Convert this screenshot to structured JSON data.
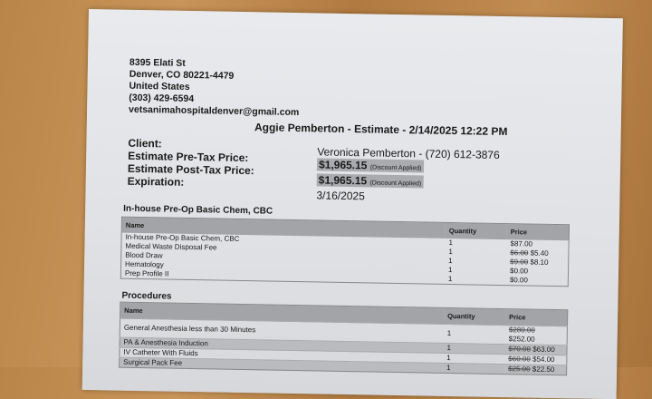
{
  "clinic": {
    "address1": "8395 Elati St",
    "address2": "Denver, CO 80221-4479",
    "country": "United States",
    "phone": "(303) 429-6594",
    "email": "vetsanimahospitaldenver@gmail.com"
  },
  "title": "Aggie Pemberton - Estimate - 2/14/2025 12:22 PM",
  "info": {
    "client_label": "Client:",
    "client_value": "Veronica Pemberton - (720) 612-3876",
    "pretax_label": "Estimate Pre-Tax Price:",
    "pretax_value": "$1,965.15",
    "pretax_note": "(Discount Applied)",
    "posttax_label": "Estimate Post-Tax Price:",
    "posttax_value": "$1,965.15",
    "posttax_note": "(Discount Applied)",
    "expiration_label": "Expiration:",
    "expiration_value": "3/16/2025"
  },
  "sections": [
    {
      "title": "In-house Pre-Op Basic Chem, CBC",
      "headers": [
        "Name",
        "Quantity",
        "Price"
      ],
      "rows": [
        {
          "name": "In-house Pre-Op Basic Chem, CBC",
          "qty": "1",
          "old": "",
          "price": "$87.00"
        },
        {
          "name": "Medical Waste Disposal Fee",
          "qty": "1",
          "old": "$6.00",
          "price": "$5.40"
        },
        {
          "name": "Blood Draw",
          "qty": "1",
          "old": "$9.00",
          "price": "$8.10"
        },
        {
          "name": "Hematology",
          "qty": "1",
          "old": "",
          "price": "$0.00"
        },
        {
          "name": "Prep Profile II",
          "qty": "1",
          "old": "",
          "price": "$0.00"
        }
      ]
    },
    {
      "title": "Procedures",
      "headers": [
        "Name",
        "Quantity",
        "Price"
      ],
      "rows": [
        {
          "name": "General Anesthesia less than 30 Minutes",
          "qty": "1",
          "old": "$280.00",
          "price": "$252.00"
        },
        {
          "name": "PA & Anesthesia Induction",
          "qty": "1",
          "old": "$70.00",
          "price": "$63.00"
        },
        {
          "name": "IV Catheter With Fluids",
          "qty": "1",
          "old": "$60.00",
          "price": "$54.00"
        },
        {
          "name": "Surgical Pack Fee",
          "qty": "1",
          "old": "$25.00",
          "price": "$22.50"
        }
      ]
    }
  ]
}
